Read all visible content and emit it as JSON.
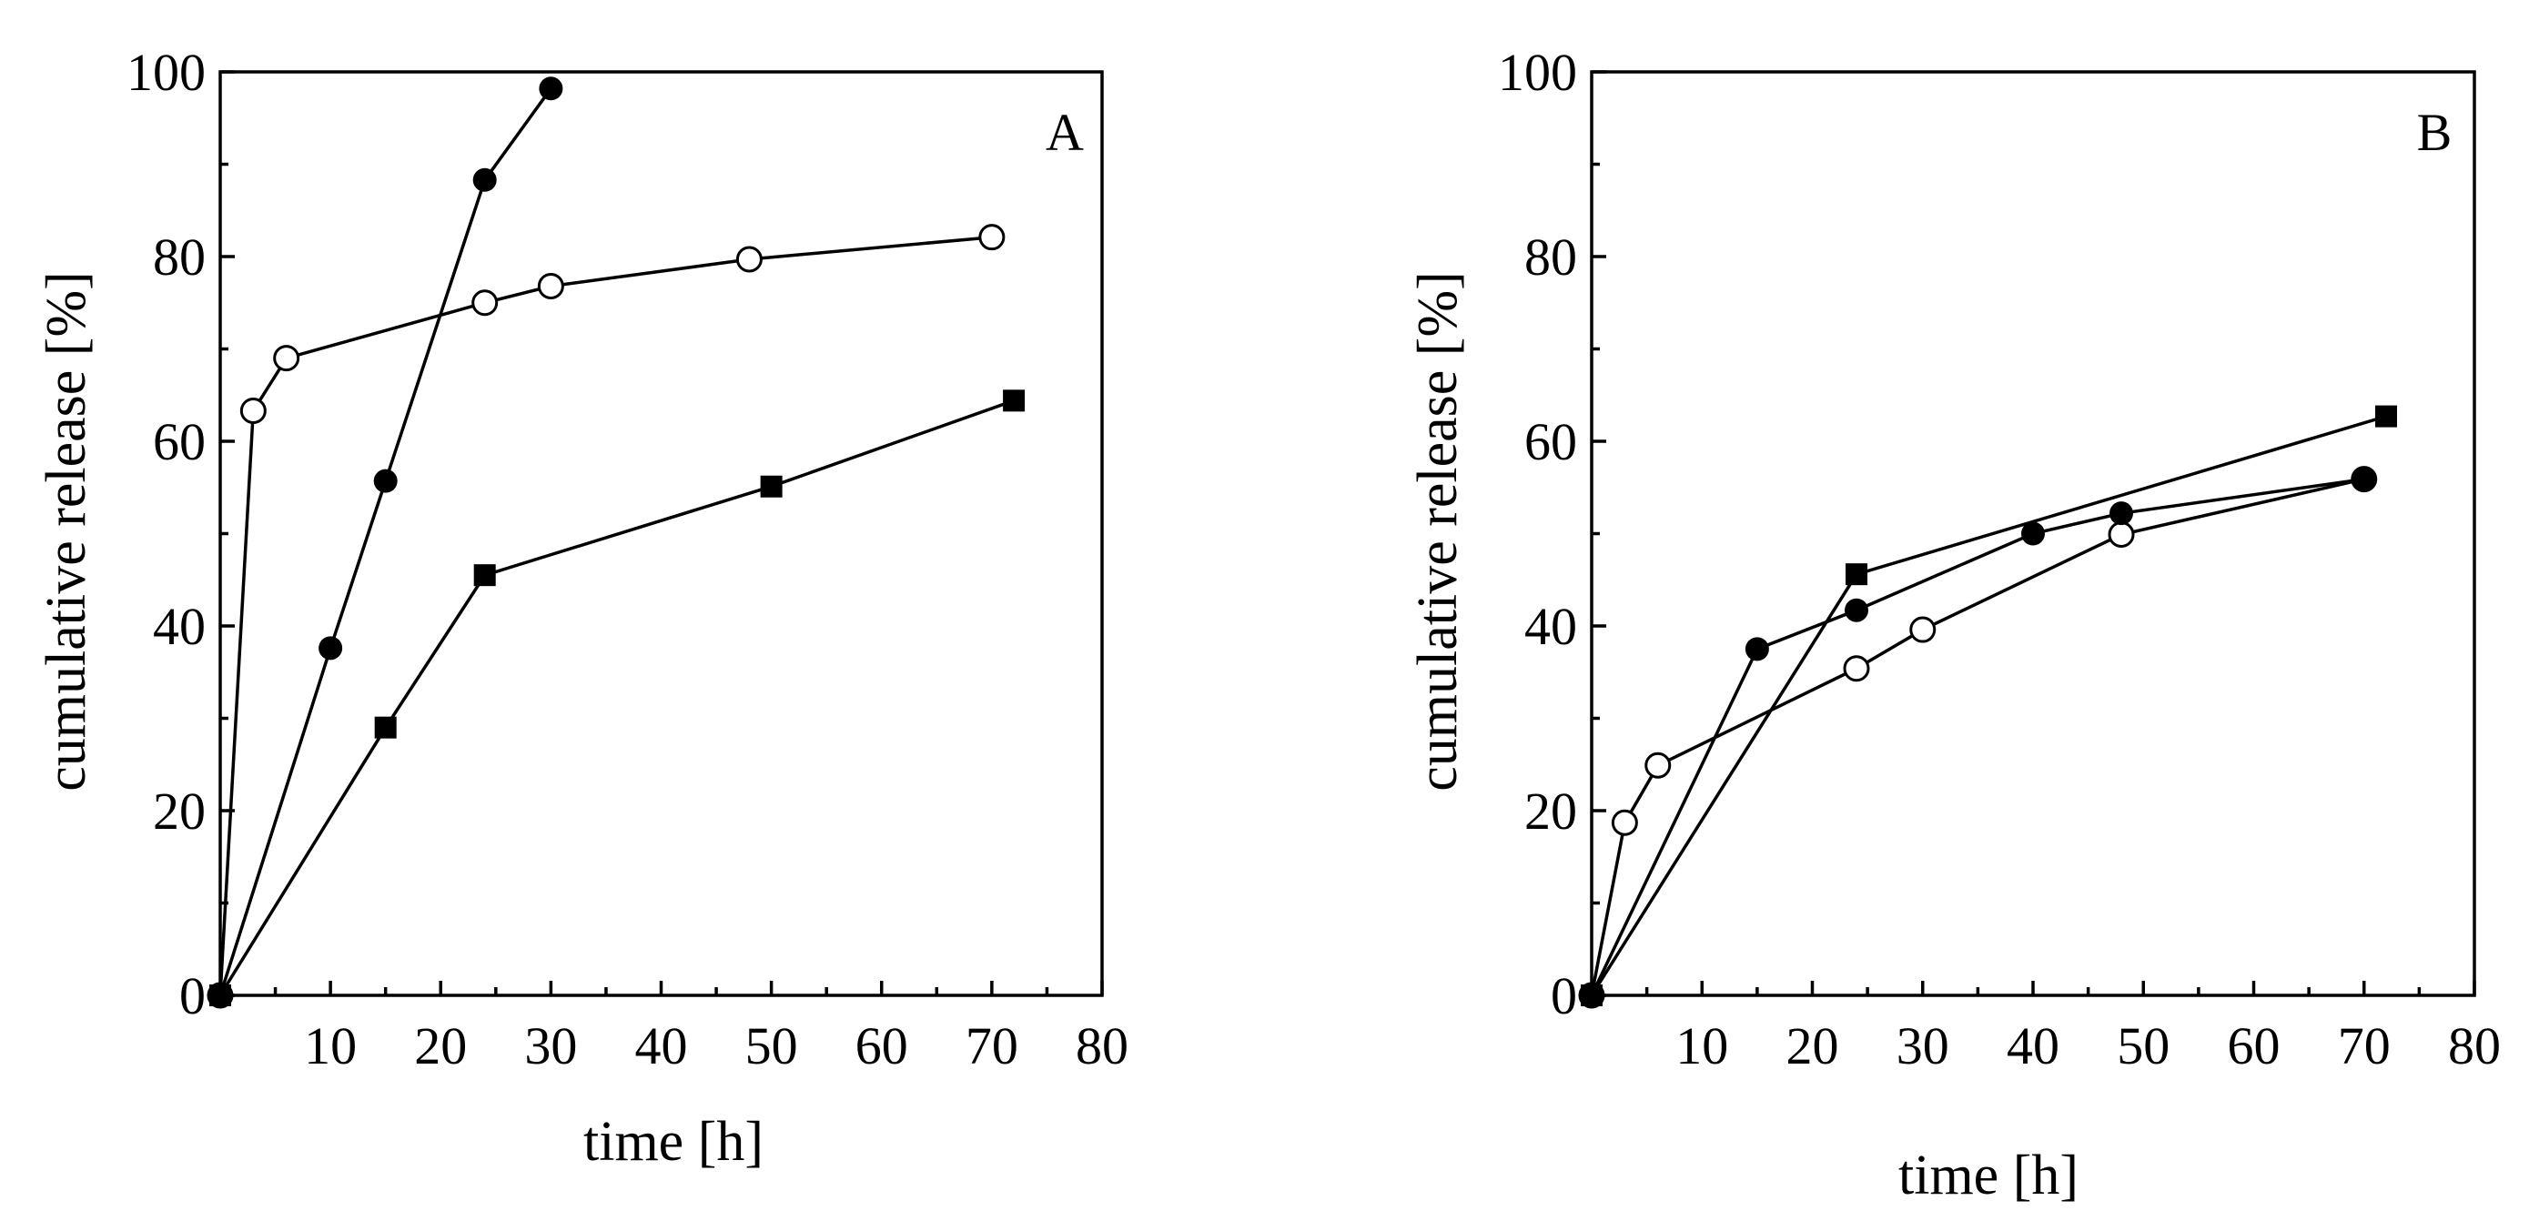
{
  "chart_data": [
    {
      "type": "line",
      "panel_label": "A",
      "xlabel": "time [h]",
      "ylabel": "cumulative release [%]",
      "xlim": [
        0,
        80
      ],
      "ylim": [
        0,
        100
      ],
      "xticks": [
        10,
        20,
        30,
        40,
        50,
        60,
        70,
        80
      ],
      "yticks": [
        0,
        20,
        40,
        60,
        80,
        100
      ],
      "grid": false,
      "series": [
        {
          "name": "open circles",
          "marker": "open-circle",
          "x": [
            0,
            3,
            6,
            24,
            30,
            48,
            70
          ],
          "y": [
            0,
            63.3,
            69.0,
            75.0,
            76.8,
            79.7,
            82.1
          ]
        },
        {
          "name": "filled circles",
          "marker": "filled-circle",
          "x": [
            0,
            10,
            15,
            24,
            30
          ],
          "y": [
            0,
            37.6,
            55.7,
            88.3,
            98.2
          ]
        },
        {
          "name": "filled squares",
          "marker": "filled-square",
          "x": [
            0,
            15,
            24,
            50,
            72
          ],
          "y": [
            0,
            29.0,
            45.5,
            55.1,
            64.4
          ]
        }
      ]
    },
    {
      "type": "line",
      "panel_label": "B",
      "xlabel": "time [h]",
      "ylabel": "cumulative release [%]",
      "xlim": [
        0,
        80
      ],
      "ylim": [
        0,
        100
      ],
      "xticks": [
        10,
        20,
        30,
        40,
        50,
        60,
        70,
        80
      ],
      "yticks": [
        0,
        20,
        40,
        60,
        80,
        100
      ],
      "grid": false,
      "series": [
        {
          "name": "open circles",
          "marker": "open-circle",
          "x": [
            0,
            3,
            6,
            24,
            30,
            48,
            70
          ],
          "y": [
            0,
            18.7,
            24.9,
            35.4,
            39.6,
            49.9,
            55.9
          ]
        },
        {
          "name": "filled circles",
          "marker": "filled-circle",
          "x": [
            0,
            15,
            24,
            40,
            48,
            70
          ],
          "y": [
            0,
            37.5,
            41.7,
            50.0,
            52.2,
            55.9
          ]
        },
        {
          "name": "filled squares",
          "marker": "filled-square",
          "x": [
            0,
            24,
            72
          ],
          "y": [
            0,
            45.6,
            62.7
          ]
        }
      ]
    }
  ]
}
